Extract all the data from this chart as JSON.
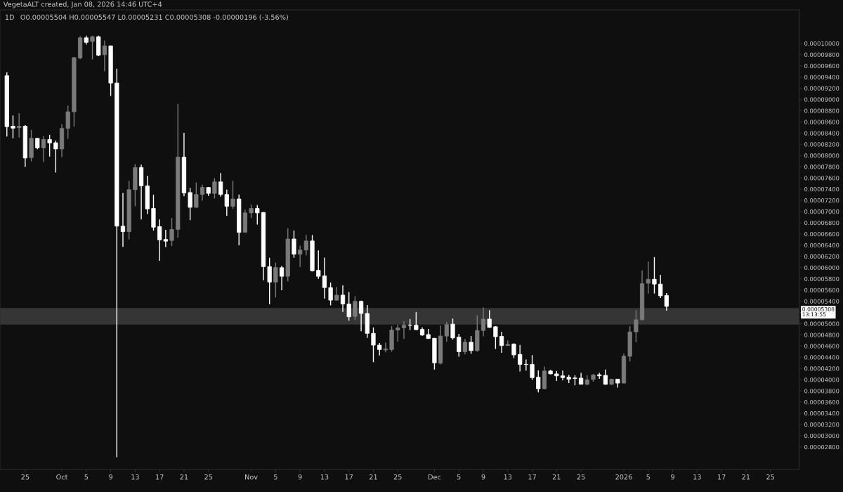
{
  "chart_data": {
    "type": "candlestick",
    "title": "1D",
    "annotations": [
      "VegetaALT created, Jan 08, 2026 14:46 UTC+4",
      "O0.00005504 H0.00005547 L0.00005231 C0.00005308 -0.00000196 (-3.56%)",
      "0.00005308\n13:13:55"
    ],
    "x": [
      "2025-09-22",
      "2025-09-23",
      "2025-09-24",
      "2025-09-25",
      "2025-09-26",
      "2025-09-27",
      "2025-09-28",
      "2025-09-29",
      "2025-09-30",
      "2025-10-01",
      "2025-10-02",
      "2025-10-03",
      "2025-10-04",
      "2025-10-05",
      "2025-10-06",
      "2025-10-07",
      "2025-10-08",
      "2025-10-09",
      "2025-10-10",
      "2025-10-11",
      "2025-10-12",
      "2025-10-13",
      "2025-10-14",
      "2025-10-15",
      "2025-10-16",
      "2025-10-17",
      "2025-10-18",
      "2025-10-19",
      "2025-10-20",
      "2025-10-21",
      "2025-10-22",
      "2025-10-23",
      "2025-10-24",
      "2025-10-25",
      "2025-10-26",
      "2025-10-27",
      "2025-10-28",
      "2025-10-29",
      "2025-10-30",
      "2025-10-31",
      "2025-11-01",
      "2025-11-02",
      "2025-11-03",
      "2025-11-04",
      "2025-11-05",
      "2025-11-06",
      "2025-11-07",
      "2025-11-08",
      "2025-11-09",
      "2025-11-10",
      "2025-11-11",
      "2025-11-12",
      "2025-11-13",
      "2025-11-14",
      "2025-11-15",
      "2025-11-16",
      "2025-11-17",
      "2025-11-18",
      "2025-11-19",
      "2025-11-20",
      "2025-11-21",
      "2025-11-22",
      "2025-11-23",
      "2025-11-24",
      "2025-11-25",
      "2025-11-26",
      "2025-11-27",
      "2025-11-28",
      "2025-11-29",
      "2025-11-30",
      "2025-12-01",
      "2025-12-02",
      "2025-12-03",
      "2025-12-04",
      "2025-12-05",
      "2025-12-06",
      "2025-12-07",
      "2025-12-08",
      "2025-12-09",
      "2025-12-10",
      "2025-12-11",
      "2025-12-12",
      "2025-12-13",
      "2025-12-14",
      "2025-12-15",
      "2025-12-16",
      "2025-12-17",
      "2025-12-18",
      "2025-12-19",
      "2025-12-20",
      "2025-12-21",
      "2025-12-22",
      "2025-12-23",
      "2025-12-24",
      "2025-12-25",
      "2025-12-26",
      "2025-12-27",
      "2025-12-28",
      "2025-12-29",
      "2025-12-30",
      "2025-12-31",
      "2026-01-01",
      "2026-01-02",
      "2026-01-03",
      "2026-01-04",
      "2026-01-05",
      "2026-01-06",
      "2026-01-07",
      "2026-01-08"
    ],
    "ohlc": [
      [
        9.424e-05,
        9.483e-05,
        8.338e-05,
        8.516e-05
      ],
      [
        8.524e-05,
        8.714e-05,
        8.307e-05,
        8.489e-05
      ],
      [
        8.497e-05,
        8.753e-05,
        8.319e-05,
        8.524e-05
      ],
      [
        8.524e-05,
        8.544e-05,
        7.798e-05,
        7.956e-05
      ],
      [
        7.964e-05,
        8.457e-05,
        7.897e-05,
        8.307e-05
      ],
      [
        8.307e-05,
        8.31e-05,
        8.113e-05,
        8.137e-05
      ],
      [
        8.137e-05,
        8.347e-05,
        7.885e-05,
        8.287e-05
      ],
      [
        8.287e-05,
        8.37e-05,
        7.983e-05,
        8.225e-05
      ],
      [
        8.228e-05,
        8.267e-05,
        7.695e-05,
        8.118e-05
      ],
      [
        8.118e-05,
        8.563e-05,
        7.971e-05,
        8.485e-05
      ],
      [
        8.485e-05,
        8.891e-05,
        8.299e-05,
        8.781e-05
      ],
      [
        8.781e-05,
        9.76e-05,
        8.516e-05,
        9.747e-05
      ],
      [
        9.74e-05,
        0.0001013,
        9.72e-05,
        0.000101
      ],
      [
        0.000101,
        0.0001014,
        9.98e-05,
        0.0001002
      ],
      [
        0.00010036,
        0.0001014,
        9.712e-05,
        0.0001012
      ],
      [
        0.0001012,
        0.0001014,
        9.771e-05,
        9.791e-05
      ],
      [
        9.799e-05,
        0.0001005,
        9.503e-05,
        9.957e-05
      ],
      [
        9.957e-05,
        9.965e-05,
        9.065e-05,
        9.294e-05
      ],
      [
        9.294e-05,
        9.551e-05,
        2.616e-05,
        6.74e-05
      ],
      [
        6.74e-05,
        7.332e-05,
        6.369e-05,
        6.642e-05
      ],
      [
        6.642e-05,
        7.55e-05,
        6.503e-05,
        7.391e-05
      ],
      [
        7.391e-05,
        7.846e-05,
        7.095e-05,
        7.787e-05
      ],
      [
        7.787e-05,
        7.837e-05,
        6.858e-05,
        7.459e-05
      ],
      [
        7.459e-05,
        7.64e-05,
        6.958e-05,
        7.048e-05
      ],
      [
        7.056e-05,
        7.301e-05,
        6.662e-05,
        6.721e-05
      ],
      [
        6.733e-05,
        6.858e-05,
        6.121e-05,
        6.496e-05
      ],
      [
        6.503e-05,
        6.674e-05,
        6.366e-05,
        6.472e-05
      ],
      [
        6.484e-05,
        6.887e-05,
        6.385e-05,
        6.681e-05
      ],
      [
        6.681e-05,
        8.923e-05,
        6.532e-05,
        7.971e-05
      ],
      [
        7.971e-05,
        8.406e-05,
        7.273e-05,
        7.332e-05
      ],
      [
        7.34e-05,
        7.423e-05,
        6.846e-05,
        7.076e-05
      ],
      [
        7.076e-05,
        7.518e-05,
        7.068e-05,
        7.305e-05
      ],
      [
        7.305e-05,
        7.479e-05,
        7.195e-05,
        7.431e-05
      ],
      [
        7.431e-05,
        7.435e-05,
        7.281e-05,
        7.325e-05
      ],
      [
        7.325e-05,
        7.597e-05,
        7.234e-05,
        7.53e-05
      ],
      [
        7.53e-05,
        7.687e-05,
        7.266e-05,
        7.305e-05
      ],
      [
        7.305e-05,
        7.391e-05,
        6.926e-05,
        7.095e-05
      ],
      [
        7.095e-05,
        7.55e-05,
        7.048e-05,
        7.225e-05
      ],
      [
        7.225e-05,
        7.305e-05,
        6.397e-05,
        6.63e-05
      ],
      [
        6.633e-05,
        7.036e-05,
        6.62e-05,
        6.977e-05
      ],
      [
        6.977e-05,
        7.127e-05,
        6.887e-05,
        7.056e-05
      ],
      [
        7.056e-05,
        7.115e-05,
        6.768e-05,
        6.977e-05
      ],
      [
        6.985e-05,
        6.99e-05,
        5.774e-05,
        6.018e-05
      ],
      [
        6.018e-05,
        6.176e-05,
        5.348e-05,
        5.742e-05
      ],
      [
        5.742e-05,
        6.089e-05,
        5.466e-05,
        6.002e-05
      ],
      [
        5.999e-05,
        6.03e-05,
        5.596e-05,
        5.845e-05
      ],
      [
        5.845e-05,
        6.701e-05,
        5.754e-05,
        6.511e-05
      ],
      [
        6.511e-05,
        6.662e-05,
        6.176e-05,
        6.239e-05
      ],
      [
        6.239e-05,
        6.393e-05,
        6.011e-05,
        6.314e-05
      ],
      [
        6.314e-05,
        6.582e-05,
        6.219e-05,
        6.476e-05
      ],
      [
        6.476e-05,
        6.582e-05,
        5.931e-05,
        5.943e-05
      ],
      [
        5.951e-05,
        6.307e-05,
        5.801e-05,
        5.845e-05
      ],
      [
        5.852e-05,
        6.18e-05,
        5.449e-05,
        5.644e-05
      ],
      [
        5.644e-05,
        5.734e-05,
        5.327e-05,
        5.419e-05
      ],
      [
        5.419e-05,
        5.655e-05,
        5.41e-05,
        5.509e-05
      ],
      [
        5.509e-05,
        5.683e-05,
        5.209e-05,
        5.351e-05
      ],
      [
        5.351e-05,
        5.564e-05,
        5.052e-05,
        5.123e-05
      ],
      [
        5.13e-05,
        5.49e-05,
        5.063e-05,
        5.398e-05
      ],
      [
        5.398e-05,
        5.41e-05,
        4.866e-05,
        5.182e-05
      ],
      [
        5.182e-05,
        5.331e-05,
        4.747e-05,
        4.827e-05
      ],
      [
        4.827e-05,
        4.933e-05,
        4.313e-05,
        4.617e-05
      ],
      [
        4.617e-05,
        4.656e-05,
        4.431e-05,
        4.538e-05
      ],
      [
        4.531e-05,
        4.661e-05,
        4.49e-05,
        4.55e-05
      ],
      [
        4.538e-05,
        4.957e-05,
        4.499e-05,
        4.886e-05
      ],
      [
        4.886e-05,
        4.984e-05,
        4.676e-05,
        4.925e-05
      ],
      [
        4.925e-05,
        5.043e-05,
        4.727e-05,
        4.972e-05
      ],
      [
        4.975e-05,
        5.082e-05,
        4.886e-05,
        4.97e-05
      ],
      [
        4.972e-05,
        5.209e-05,
        4.885e-05,
        4.893e-05
      ],
      [
        4.898e-05,
        4.933e-05,
        4.779e-05,
        4.798e-05
      ],
      [
        4.806e-05,
        4.905e-05,
        4.727e-05,
        4.735e-05
      ],
      [
        4.739e-05,
        4.745e-05,
        4.182e-05,
        4.301e-05
      ],
      [
        4.294e-05,
        4.964e-05,
        4.274e-05,
        4.779e-05
      ],
      [
        4.779e-05,
        5.031e-05,
        4.676e-05,
        4.984e-05
      ],
      [
        4.992e-05,
        5.091e-05,
        4.715e-05,
        4.747e-05
      ],
      [
        4.759e-05,
        4.818e-05,
        4.412e-05,
        4.499e-05
      ],
      [
        4.499e-05,
        4.727e-05,
        4.451e-05,
        4.668e-05
      ],
      [
        4.668e-05,
        4.779e-05,
        4.463e-05,
        4.519e-05
      ],
      [
        4.519e-05,
        5.15e-05,
        4.502e-05,
        4.878e-05
      ],
      [
        4.878e-05,
        5.292e-05,
        4.774e-05,
        5.082e-05
      ],
      [
        5.082e-05,
        5.241e-05,
        4.925e-05,
        4.933e-05
      ],
      [
        4.945e-05,
        4.957e-05,
        4.55e-05,
        4.767e-05
      ],
      [
        4.774e-05,
        4.857e-05,
        4.478e-05,
        4.609e-05
      ],
      [
        4.609e-05,
        4.7e-05,
        4.605e-05,
        4.629e-05
      ],
      [
        4.637e-05,
        4.649e-05,
        4.384e-05,
        4.443e-05
      ],
      [
        4.451e-05,
        4.621e-05,
        4.147e-05,
        4.274e-05
      ],
      [
        4.274e-05,
        4.36e-05,
        4.164e-05,
        4.27e-05
      ],
      [
        4.274e-05,
        4.439e-05,
        3.998e-05,
        4.037e-05
      ],
      [
        4.045e-05,
        4.167e-05,
        3.773e-05,
        3.839e-05
      ],
      [
        3.839e-05,
        4.235e-05,
        3.827e-05,
        4.155e-05
      ],
      [
        4.155e-05,
        4.175e-05,
        4.096e-05,
        4.104e-05
      ],
      [
        4.104e-05,
        4.155e-05,
        3.978e-05,
        4.069e-05
      ],
      [
        4.069e-05,
        4.164e-05,
        3.986e-05,
        4.037e-05
      ],
      [
        4.045e-05,
        4.084e-05,
        3.939e-05,
        4.01e-05
      ],
      [
        4.03e-05,
        4.077e-05,
        3.898e-05,
        4.022e-05
      ],
      [
        4.028e-05,
        4.123e-05,
        3.915e-05,
        3.918e-05
      ],
      [
        3.918e-05,
        4.077e-05,
        3.898e-05,
        3.998e-05
      ],
      [
        4.005e-05,
        4.104e-05,
        3.966e-05,
        4.084e-05
      ],
      [
        4.088e-05,
        4.123e-05,
        4.015e-05,
        4.069e-05
      ],
      [
        4.077e-05,
        4.182e-05,
        3.91e-05,
        3.918e-05
      ],
      [
        3.918e-05,
        4.015e-05,
        3.91e-05,
        4.01e-05
      ],
      [
        4.01e-05,
        4.015e-05,
        3.859e-05,
        3.939e-05
      ],
      [
        3.939e-05,
        4.471e-05,
        3.935e-05,
        4.419e-05
      ],
      [
        4.419e-05,
        4.957e-05,
        4.325e-05,
        4.854e-05
      ],
      [
        4.854e-05,
        5.241e-05,
        4.668e-05,
        5.07e-05
      ],
      [
        5.07e-05,
        5.951e-05,
        5.06e-05,
        5.715e-05
      ],
      [
        5.722e-05,
        6.109e-05,
        5.537e-05,
        5.793e-05
      ],
      [
        5.793e-05,
        6.188e-05,
        5.537e-05,
        5.706e-05
      ],
      [
        5.706e-05,
        5.872e-05,
        5.458e-05,
        5.497e-05
      ],
      [
        5.504e-05,
        5.547e-05,
        5.231e-05,
        5.308e-05
      ]
    ],
    "colors": [
      "#ffffff",
      "#ffffff",
      "#7a7a7a",
      "#ffffff",
      "#7a7a7a",
      "#ffffff",
      "#7a7a7a",
      "#ffffff",
      "#ffffff",
      "#7a7a7a",
      "#7a7a7a",
      "#7a7a7a",
      "#7a7a7a",
      "#ffffff",
      "#7a7a7a",
      "#ffffff",
      "#7a7a7a",
      "#ffffff",
      "#ffffff",
      "#ffffff",
      "#7a7a7a",
      "#7a7a7a",
      "#ffffff",
      "#ffffff",
      "#ffffff",
      "#ffffff",
      "#ffffff",
      "#7a7a7a",
      "#7a7a7a",
      "#ffffff",
      "#ffffff",
      "#7a7a7a",
      "#7a7a7a",
      "#ffffff",
      "#7a7a7a",
      "#ffffff",
      "#ffffff",
      "#7a7a7a",
      "#ffffff",
      "#7a7a7a",
      "#7a7a7a",
      "#ffffff",
      "#ffffff",
      "#ffffff",
      "#7a7a7a",
      "#ffffff",
      "#7a7a7a",
      "#ffffff",
      "#7a7a7a",
      "#7a7a7a",
      "#ffffff",
      "#ffffff",
      "#ffffff",
      "#ffffff",
      "#7a7a7a",
      "#ffffff",
      "#ffffff",
      "#7a7a7a",
      "#ffffff",
      "#ffffff",
      "#ffffff",
      "#ffffff",
      "#7a7a7a",
      "#7a7a7a",
      "#7a7a7a",
      "#7a7a7a",
      "#ffffff",
      "#ffffff",
      "#ffffff",
      "#ffffff",
      "#ffffff",
      "#7a7a7a",
      "#7a7a7a",
      "#ffffff",
      "#ffffff",
      "#7a7a7a",
      "#ffffff",
      "#7a7a7a",
      "#7a7a7a",
      "#ffffff",
      "#ffffff",
      "#ffffff",
      "#7a7a7a",
      "#ffffff",
      "#ffffff",
      "#ffffff",
      "#ffffff",
      "#ffffff",
      "#7a7a7a",
      "#ffffff",
      "#ffffff",
      "#ffffff",
      "#ffffff",
      "#ffffff",
      "#ffffff",
      "#7a7a7a",
      "#7a7a7a",
      "#ffffff",
      "#ffffff",
      "#7a7a7a",
      "#ffffff",
      "#7a7a7a",
      "#7a7a7a",
      "#7a7a7a",
      "#7a7a7a",
      "#7a7a7a",
      "#ffffff",
      "#ffffff",
      "#ffffff"
    ],
    "bands": [
      {
        "axis": "y",
        "from": 4.984e-05,
        "to": 5.28e-05,
        "color": "#353535"
      }
    ],
    "xlim": [
      "2025-09-20T21:00",
      "2026-01-29T17:00"
    ],
    "xticks": [
      {
        "value": "2025-09-25",
        "label": "25"
      },
      {
        "value": "2025-10-01",
        "label": "Oct"
      },
      {
        "value": "2025-10-05",
        "label": "5"
      },
      {
        "value": "2025-10-09",
        "label": "9"
      },
      {
        "value": "2025-10-13",
        "label": "13"
      },
      {
        "value": "2025-10-17",
        "label": "17"
      },
      {
        "value": "2025-10-21",
        "label": "21"
      },
      {
        "value": "2025-10-25",
        "label": "25"
      },
      {
        "value": "2025-11-01",
        "label": "Nov"
      },
      {
        "value": "2025-11-05",
        "label": "5"
      },
      {
        "value": "2025-11-09",
        "label": "9"
      },
      {
        "value": "2025-11-13",
        "label": "13"
      },
      {
        "value": "2025-11-17",
        "label": "17"
      },
      {
        "value": "2025-11-21",
        "label": "21"
      },
      {
        "value": "2025-11-25",
        "label": "25"
      },
      {
        "value": "2025-12-01",
        "label": "Dec"
      },
      {
        "value": "2025-12-05",
        "label": "5"
      },
      {
        "value": "2025-12-09",
        "label": "9"
      },
      {
        "value": "2025-12-13",
        "label": "13"
      },
      {
        "value": "2025-12-17",
        "label": "17"
      },
      {
        "value": "2025-12-21",
        "label": "21"
      },
      {
        "value": "2025-12-25",
        "label": "25"
      },
      {
        "value": "2026-01-01",
        "label": "2026"
      },
      {
        "value": "2026-01-05",
        "label": "5"
      },
      {
        "value": "2026-01-09",
        "label": "9"
      },
      {
        "value": "2026-01-13",
        "label": "13"
      },
      {
        "value": "2026-01-17",
        "label": "17"
      },
      {
        "value": "2026-01-21",
        "label": "21"
      },
      {
        "value": "2026-01-25",
        "label": "25"
      }
    ],
    "ylim": [
      2.4e-05,
      0.000106
    ],
    "yticks": [
      {
        "value": 2.8e-05,
        "label": "0.00002800"
      },
      {
        "value": 3e-05,
        "label": "0.00003000"
      },
      {
        "value": 3.2e-05,
        "label": "0.00003200"
      },
      {
        "value": 3.4e-05,
        "label": "0.00003400"
      },
      {
        "value": 3.6e-05,
        "label": "0.00003600"
      },
      {
        "value": 3.8e-05,
        "label": "0.00003800"
      },
      {
        "value": 4e-05,
        "label": "0.00004000"
      },
      {
        "value": 4.2e-05,
        "label": "0.00004200"
      },
      {
        "value": 4.4e-05,
        "label": "0.00004400"
      },
      {
        "value": 4.6e-05,
        "label": "0.00004600"
      },
      {
        "value": 4.8e-05,
        "label": "0.00004800"
      },
      {
        "value": 5e-05,
        "label": "0.00005000"
      },
      {
        "value": 5.2e-05,
        "label": null
      },
      {
        "value": 5.4e-05,
        "label": "0.00005400"
      },
      {
        "value": 5.6e-05,
        "label": "0.00005600"
      },
      {
        "value": 5.8e-05,
        "label": "0.00005800"
      },
      {
        "value": 6e-05,
        "label": "0.00006000"
      },
      {
        "value": 6.2e-05,
        "label": "0.00006200"
      },
      {
        "value": 6.4e-05,
        "label": "0.00006400"
      },
      {
        "value": 6.6e-05,
        "label": "0.00006600"
      },
      {
        "value": 6.8e-05,
        "label": "0.00006800"
      },
      {
        "value": 7e-05,
        "label": "0.00007000"
      },
      {
        "value": 7.2e-05,
        "label": "0.00007200"
      },
      {
        "value": 7.4e-05,
        "label": "0.00007400"
      },
      {
        "value": 7.6e-05,
        "label": "0.00007600"
      },
      {
        "value": 7.8e-05,
        "label": "0.00007800"
      },
      {
        "value": 8e-05,
        "label": "0.00008000"
      },
      {
        "value": 8.2e-05,
        "label": "0.00008200"
      },
      {
        "value": 8.4e-05,
        "label": "0.00008400"
      },
      {
        "value": 8.6e-05,
        "label": "0.00008600"
      },
      {
        "value": 8.8e-05,
        "label": "0.00008800"
      },
      {
        "value": 9e-05,
        "label": "0.00009000"
      },
      {
        "value": 9.2e-05,
        "label": "0.00009200"
      },
      {
        "value": 9.4e-05,
        "label": "0.00009400"
      },
      {
        "value": 9.6e-05,
        "label": "0.00009600"
      },
      {
        "value": 9.8e-05,
        "label": "0.00009800"
      },
      {
        "value": 0.0001,
        "label": "0.00010000"
      }
    ]
  }
}
